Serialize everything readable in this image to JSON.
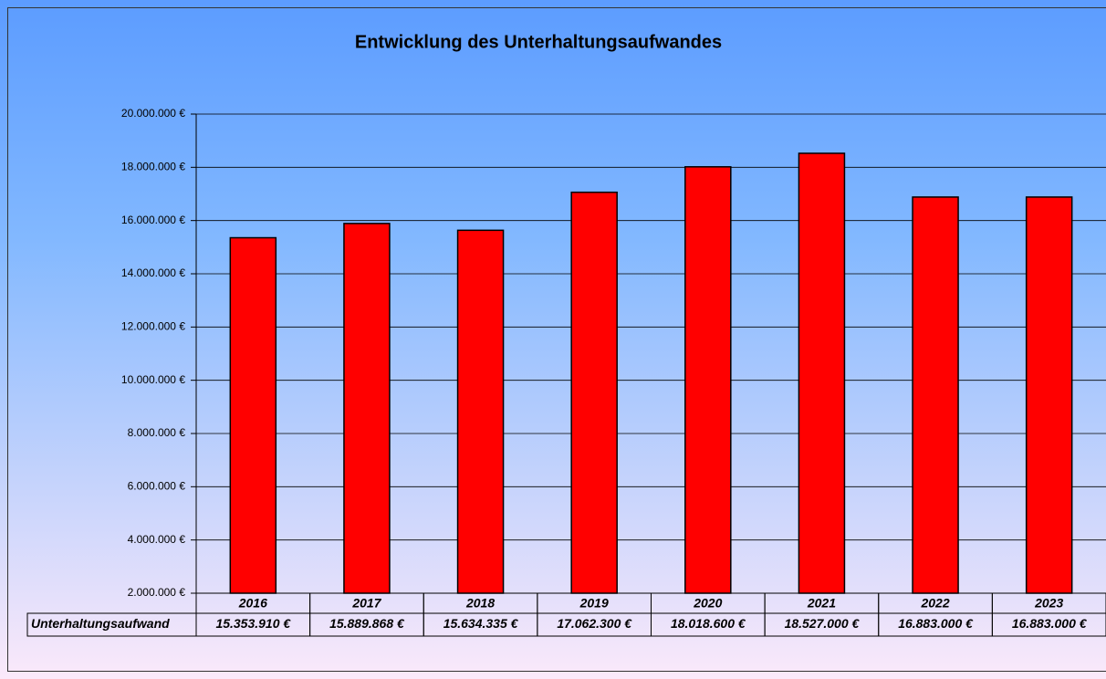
{
  "chart_data": {
    "type": "bar",
    "title": "Entwicklung des Unterhaltungsaufwandes",
    "categories": [
      "2016",
      "2017",
      "2018",
      "2019",
      "2020",
      "2021",
      "2022",
      "2023"
    ],
    "series": [
      {
        "name": "Unterhaltungsaufwand",
        "color": "#ff0000",
        "values": [
          15353910,
          15889868,
          15634335,
          17062300,
          18018600,
          18527000,
          16883000,
          16883000
        ],
        "value_labels": [
          "15.353.910 €",
          "15.889.868 €",
          "15.634.335 €",
          "17.062.300 €",
          "18.018.600 €",
          "18.527.000 €",
          "16.883.000 €",
          "16.883.000 €"
        ]
      }
    ],
    "ylim": [
      2000000,
      20000000
    ],
    "yticks": [
      {
        "value": 2000000,
        "label": "2.000.000 €"
      },
      {
        "value": 4000000,
        "label": "4.000.000 €"
      },
      {
        "value": 6000000,
        "label": "6.000.000 €"
      },
      {
        "value": 8000000,
        "label": "8.000.000 €"
      },
      {
        "value": 10000000,
        "label": "10.000.000 €"
      },
      {
        "value": 12000000,
        "label": "12.000.000 €"
      },
      {
        "value": 14000000,
        "label": "14.000.000 €"
      },
      {
        "value": 16000000,
        "label": "16.000.000 €"
      },
      {
        "value": 18000000,
        "label": "18.000.000 €"
      },
      {
        "value": 20000000,
        "label": "20.000.000 €"
      }
    ],
    "grid": true
  }
}
